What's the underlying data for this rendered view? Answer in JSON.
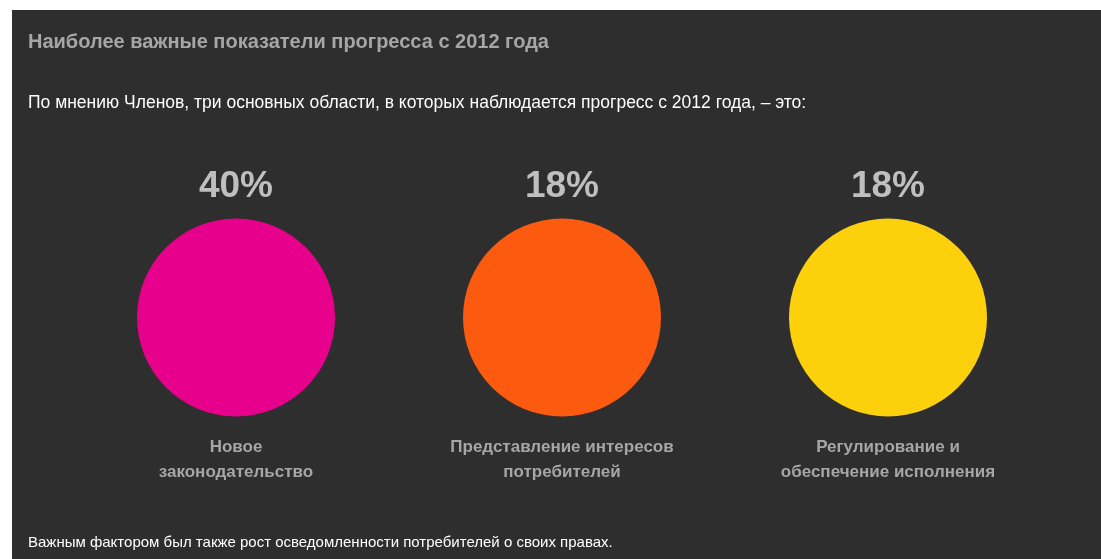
{
  "chart_data": {
    "type": "other",
    "title": "Наиболее важные показатели прогресса с 2012 года",
    "subtitle": "По мнению Членов, три основных области, в которых наблюдается прогресс с 2012 года, – это:",
    "categories": [
      "Новое\nзаконодательство",
      "Представление интересов\nпотребителей",
      "Регулирование и\nобеспечение исполнения"
    ],
    "values": [
      40,
      18,
      18
    ],
    "value_labels": [
      "40%",
      "18%",
      "18%"
    ],
    "colors": [
      "#e6008c",
      "#fc5a0f",
      "#fcd00a"
    ],
    "annotations": [
      "Важным фактором был также рост осведомленности потребителей о своих правах."
    ]
  }
}
